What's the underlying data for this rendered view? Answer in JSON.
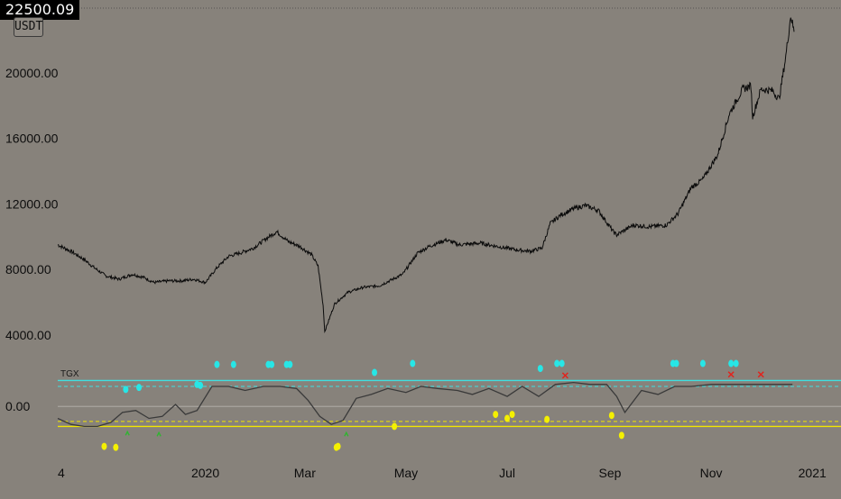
{
  "header": {
    "last_price_label": "22500.09",
    "quote_currency": "USDT"
  },
  "indicator": {
    "name": "TGX"
  },
  "colors": {
    "background": "#87827b",
    "price_line": "#0b0b0b",
    "upper_band": "#3fe0e0",
    "lower_band": "#f2e600",
    "zero_line": "#a9a59f",
    "oscillator": "#3a3a3a",
    "buy_dot": "#f4f000",
    "sell_dot": "#27e6e6",
    "exit_mark": "#e2221c",
    "entry_mark": "#2fb52f"
  },
  "chart_data": [
    {
      "type": "line",
      "title": "",
      "series": [
        {
          "values_note": "",
          "x": [
            "2019-10-04",
            "2019-10-12",
            "2019-10-20",
            "2019-10-26",
            "2019-11-02",
            "2019-11-10",
            "2019-11-18",
            "2019-11-25",
            "2019-12-01",
            "2019-12-10",
            "2019-12-18",
            "2019-12-25",
            "2020-01-01",
            "2020-01-08",
            "2020-01-15",
            "2020-01-22",
            "2020-01-30",
            "2020-02-07",
            "2020-02-13",
            "2020-02-20",
            "2020-02-27",
            "2020-03-05",
            "2020-03-09",
            "2020-03-12",
            "2020-03-13",
            "2020-03-19",
            "2020-03-27",
            "2020-04-05",
            "2020-04-15",
            "2020-04-29",
            "2020-05-08",
            "2020-05-15",
            "2020-05-25",
            "2020-06-02",
            "2020-06-15",
            "2020-06-25",
            "2020-07-06",
            "2020-07-15",
            "2020-07-22",
            "2020-07-27",
            "2020-08-02",
            "2020-08-10",
            "2020-08-17",
            "2020-08-25",
            "2020-09-03",
            "2020-09-05",
            "2020-09-15",
            "2020-09-25",
            "2020-10-05",
            "2020-10-12",
            "2020-10-20",
            "2020-10-27",
            "2020-11-05",
            "2020-11-12",
            "2020-11-20",
            "2020-11-25",
            "2020-11-26",
            "2020-12-01",
            "2020-12-08",
            "2020-12-12",
            "2020-12-16",
            "2020-12-19",
            "2020-12-21"
          ],
          "values": [
            9500,
            9100,
            8600,
            8100,
            7600,
            7400,
            7700,
            7500,
            7200,
            7300,
            7300,
            7400,
            7200,
            8100,
            8800,
            9000,
            9300,
            9900,
            10300,
            9700,
            9400,
            8900,
            8200,
            5800,
            4200,
            5900,
            6600,
            6900,
            7000,
            7700,
            9000,
            9400,
            9800,
            9500,
            9600,
            9400,
            9200,
            9100,
            9300,
            10800,
            11300,
            11700,
            11900,
            11600,
            10300,
            10100,
            10700,
            10600,
            10700,
            11400,
            13000,
            13500,
            15000,
            17500,
            19000,
            19200,
            17300,
            19000,
            18900,
            18400,
            21000,
            23500,
            22500
          ],
          "x_is_date": true
        }
      ],
      "xlabel": "",
      "ylabel": "",
      "x_ticks": [
        "4",
        "2020",
        "Mar",
        "May",
        "Jul",
        "Sep",
        "Nov",
        "2021"
      ],
      "y_ticks": [
        "4000.00",
        "8000.00",
        "12000.00",
        "16000.00",
        "20000.00"
      ],
      "ylim": [
        3000,
        24000
      ],
      "grid": false
    },
    {
      "type": "line",
      "title": "TGX",
      "series": [
        {
          "x": [
            "2019-10-04",
            "2019-10-12",
            "2019-10-20",
            "2019-10-28",
            "2019-11-05",
            "2019-11-12",
            "2019-11-20",
            "2019-11-28",
            "2019-12-06",
            "2019-12-14",
            "2019-12-20",
            "2019-12-27",
            "2020-01-05",
            "2020-01-15",
            "2020-01-25",
            "2020-02-05",
            "2020-02-15",
            "2020-02-25",
            "2020-03-03",
            "2020-03-10",
            "2020-03-17",
            "2020-03-24",
            "2020-04-01",
            "2020-04-10",
            "2020-04-20",
            "2020-05-01",
            "2020-05-10",
            "2020-05-20",
            "2020-06-01",
            "2020-06-10",
            "2020-06-20",
            "2020-07-01",
            "2020-07-10",
            "2020-07-20",
            "2020-07-30",
            "2020-08-10",
            "2020-08-20",
            "2020-08-30",
            "2020-09-05",
            "2020-09-10",
            "2020-09-20",
            "2020-09-30",
            "2020-10-10",
            "2020-10-20",
            "2020-11-01",
            "2020-11-10",
            "2020-11-20",
            "2020-12-01",
            "2020-12-10",
            "2020-12-20"
          ],
          "values": [
            -0.6,
            -0.9,
            -1.0,
            -1.0,
            -0.8,
            -0.3,
            -0.2,
            -0.6,
            -0.5,
            0.1,
            -0.4,
            -0.2,
            1.0,
            1.0,
            0.8,
            1.0,
            1.0,
            0.9,
            0.3,
            -0.5,
            -0.9,
            -0.7,
            0.4,
            0.6,
            0.9,
            0.7,
            1.0,
            0.9,
            0.8,
            0.6,
            0.9,
            0.5,
            1.0,
            0.5,
            1.1,
            1.2,
            1.1,
            1.1,
            0.5,
            -0.3,
            0.8,
            0.6,
            1.0,
            1.0,
            1.1,
            1.1,
            1.1,
            1.1,
            1.1,
            1.1
          ]
        }
      ],
      "levels": {
        "upper": 1.3,
        "upper_inner": 1.0,
        "zero": 0.0,
        "lower_inner": -0.75,
        "lower": -1.0
      },
      "y_ticks": [
        "0.00"
      ],
      "ylim": [
        -2.2,
        2.4
      ],
      "markers": {
        "sell_dots": [
          {
            "x": "2020-01-08",
            "y": 2.1
          },
          {
            "x": "2020-01-18",
            "y": 2.1
          },
          {
            "x": "2020-02-08",
            "y": 2.1
          },
          {
            "x": "2020-02-10",
            "y": 2.1
          },
          {
            "x": "2020-02-19",
            "y": 2.1
          },
          {
            "x": "2020-02-21",
            "y": 2.1
          },
          {
            "x": "2019-11-14",
            "y": 0.85
          },
          {
            "x": "2019-11-22",
            "y": 0.95
          },
          {
            "x": "2019-12-27",
            "y": 1.1
          },
          {
            "x": "2019-12-29",
            "y": 1.05
          },
          {
            "x": "2020-04-12",
            "y": 1.7
          },
          {
            "x": "2020-05-05",
            "y": 2.15
          },
          {
            "x": "2020-07-21",
            "y": 1.9
          },
          {
            "x": "2020-07-31",
            "y": 2.15
          },
          {
            "x": "2020-08-03",
            "y": 2.15
          },
          {
            "x": "2020-10-09",
            "y": 2.15
          },
          {
            "x": "2020-10-11",
            "y": 2.15
          },
          {
            "x": "2020-10-27",
            "y": 2.15
          },
          {
            "x": "2020-11-13",
            "y": 2.15
          },
          {
            "x": "2020-11-16",
            "y": 2.15
          }
        ],
        "buy_dots": [
          {
            "x": "2019-11-01",
            "y": -2.0
          },
          {
            "x": "2019-11-08",
            "y": -2.05
          },
          {
            "x": "2020-03-20",
            "y": -2.05
          },
          {
            "x": "2020-03-21",
            "y": -2.0
          },
          {
            "x": "2020-04-24",
            "y": -1.0
          },
          {
            "x": "2020-06-24",
            "y": -0.4
          },
          {
            "x": "2020-07-01",
            "y": -0.6
          },
          {
            "x": "2020-07-04",
            "y": -0.4
          },
          {
            "x": "2020-07-25",
            "y": -0.65
          },
          {
            "x": "2020-09-02",
            "y": -0.45
          },
          {
            "x": "2020-09-08",
            "y": -1.45
          }
        ],
        "entry_marks": [
          {
            "x": "2019-11-15",
            "y": -1.4
          },
          {
            "x": "2019-12-04",
            "y": -1.45
          },
          {
            "x": "2020-03-26",
            "y": -1.45
          }
        ],
        "exit_marks": [
          {
            "x": "2020-08-05",
            "y": 1.55
          },
          {
            "x": "2020-11-13",
            "y": 1.6
          },
          {
            "x": "2020-12-01",
            "y": 1.6
          }
        ]
      }
    }
  ]
}
